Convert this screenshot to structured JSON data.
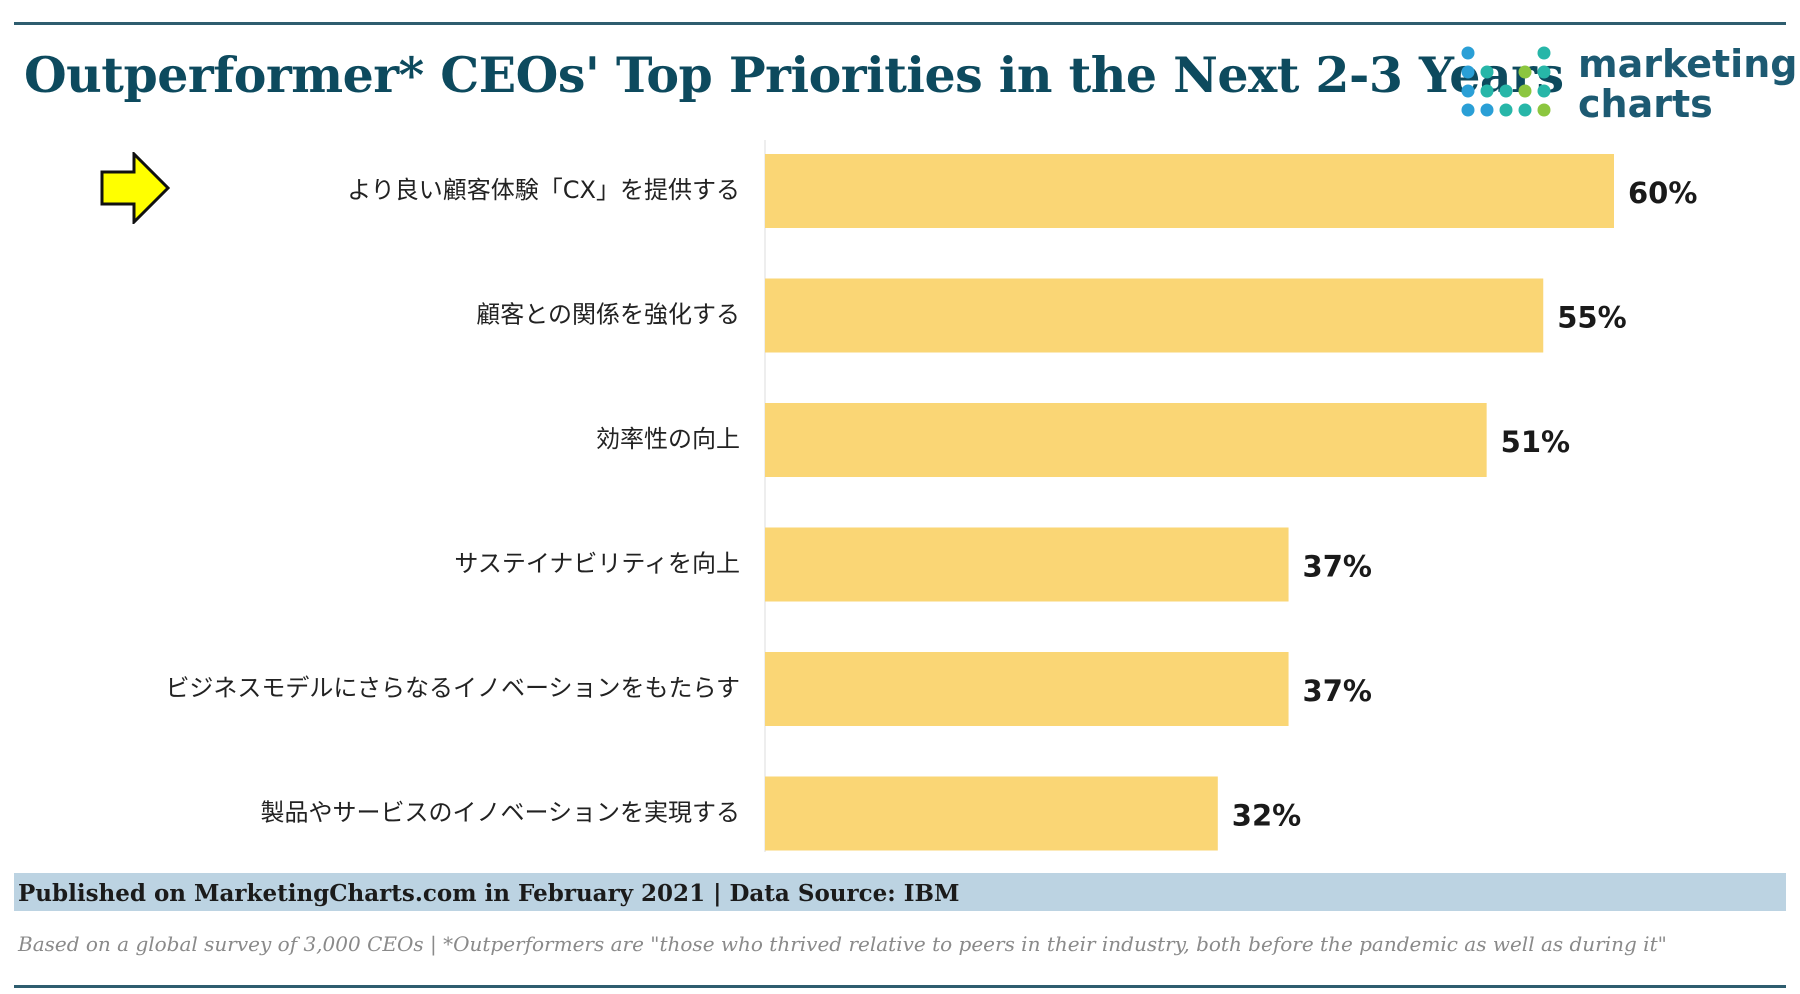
{
  "header": {
    "title": "Outperformer* CEOs' Top Priorities in the Next 2-3 Years",
    "logo_line1": "marketing",
    "logo_line2": "charts"
  },
  "colors": {
    "bar": "#fad675",
    "title": "#0d4a5e",
    "rule": "#2e5d6f",
    "footer_band": "#bcd3e2",
    "arrow_fill": "#ffff00",
    "logo_dot_blue": "#2a9fd6",
    "logo_dot_teal": "#27b6a8",
    "logo_dot_green": "#8cc63f"
  },
  "chart_data": {
    "type": "bar",
    "orientation": "horizontal",
    "categories": [
      "より良い顧客体験「CX」を提供する",
      "顧客との関係を強化する",
      "効率性の向上",
      "サステイナビリティを向上",
      "ビジネスモデルにさらなるイノベーションをもたらす",
      "製品やサービスのイノベーションを実現する"
    ],
    "values": [
      60,
      55,
      51,
      37,
      37,
      32
    ],
    "value_labels": [
      "60%",
      "55%",
      "51%",
      "37%",
      "37%",
      "32%"
    ],
    "unit": "%",
    "xlim": [
      0,
      60
    ],
    "grid": false,
    "legend": "none",
    "annotations": [
      {
        "type": "arrow",
        "points_to": "より良い顧客体験「CX」を提供する"
      }
    ]
  },
  "footer": {
    "published": "Published on MarketingCharts.com in February 2021 | Data Source: IBM",
    "note": "Based on a global survey of 3,000 CEOs | *Outperformers are \"those who thrived relative to peers in their industry, both before the pandemic as well as during it\""
  }
}
